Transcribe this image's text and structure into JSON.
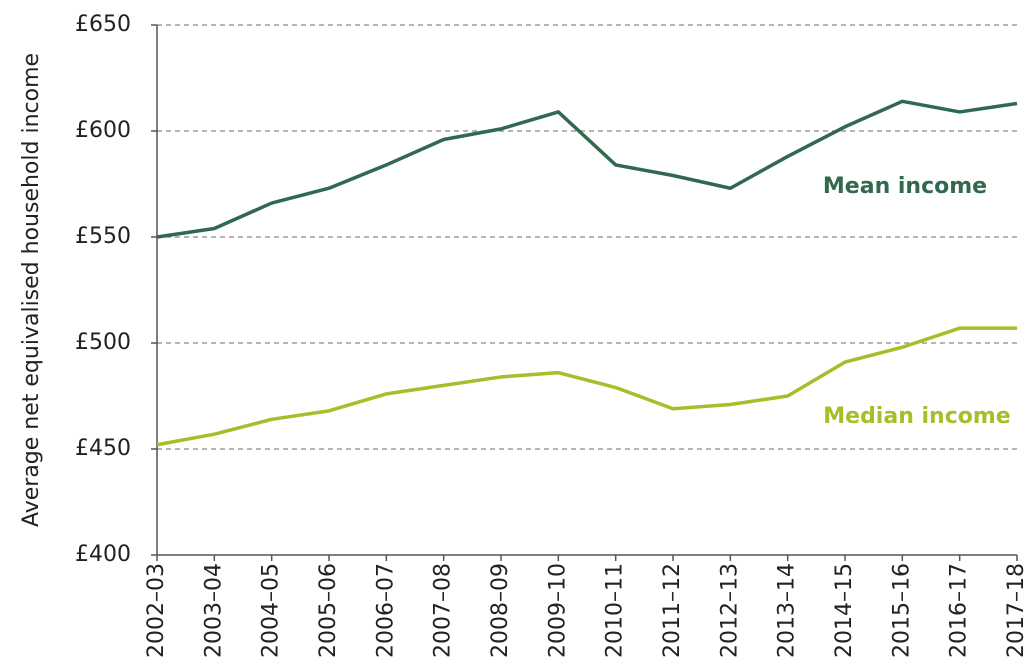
{
  "chart_data": {
    "type": "line",
    "ylabel": "Average net equivalised household income",
    "categories": [
      "2002–03",
      "2003–04",
      "2004–05",
      "2005–06",
      "2006–07",
      "2007–08",
      "2008–09",
      "2009–10",
      "2010–11",
      "2011–12",
      "2012–13",
      "2013–14",
      "2014–15",
      "2015–16",
      "2016–17",
      "2017–18"
    ],
    "series": [
      {
        "name": "Mean income",
        "color": "#31694f",
        "values": [
          550,
          554,
          566,
          573,
          584,
          596,
          601,
          609,
          584,
          579,
          573,
          588,
          602,
          614,
          609,
          613
        ]
      },
      {
        "name": "Median income",
        "color": "#a9bd2a",
        "values": [
          452,
          457,
          464,
          468,
          476,
          480,
          484,
          486,
          479,
          469,
          471,
          475,
          491,
          498,
          507,
          507
        ]
      }
    ],
    "ylim": [
      400,
      650
    ],
    "yticks": [
      {
        "value": 400,
        "label": "£400"
      },
      {
        "value": 450,
        "label": "£450"
      },
      {
        "value": 500,
        "label": "£500"
      },
      {
        "value": 550,
        "label": "£550"
      },
      {
        "value": 600,
        "label": "£600"
      },
      {
        "value": 650,
        "label": "£650"
      }
    ],
    "grid": true
  }
}
